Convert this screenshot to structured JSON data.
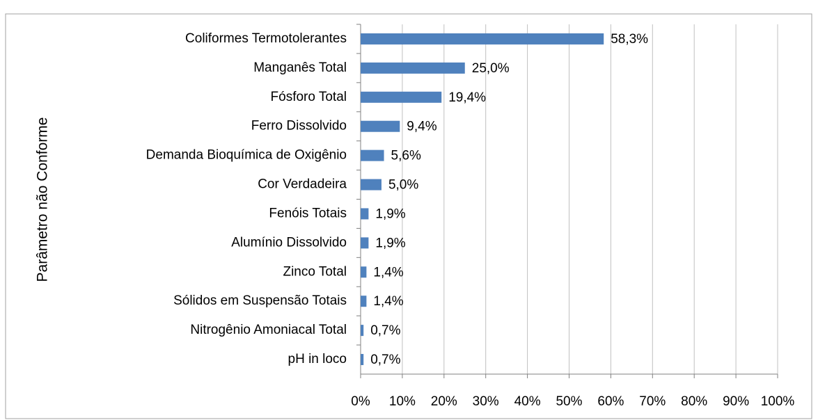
{
  "chart_data": {
    "type": "bar",
    "orientation": "horizontal",
    "y_label": "Parâmetro não Conforme",
    "categories": [
      "Coliformes Termotolerantes",
      "Manganês Total",
      "Fósforo Total",
      "Ferro Dissolvido",
      "Demanda Bioquímica de Oxigênio",
      "Cor Verdadeira",
      "Fenóis Totais",
      "Alumínio Dissolvido",
      "Zinco Total",
      "Sólidos em Suspensão Totais",
      "Nitrogênio Amoniacal Total",
      "pH in loco"
    ],
    "values": [
      58.3,
      25.0,
      19.4,
      9.4,
      5.6,
      5.0,
      1.9,
      1.9,
      1.4,
      1.4,
      0.7,
      0.7
    ],
    "value_labels": [
      "58,3%",
      "25,0%",
      "19,4%",
      "9,4%",
      "5,6%",
      "5,0%",
      "1,9%",
      "1,9%",
      "1,4%",
      "1,4%",
      "0,7%",
      "0,7%"
    ],
    "color": "#4f81bd",
    "xlim": [
      0,
      100
    ],
    "xticks": [
      {
        "value": 0,
        "label": "0%"
      },
      {
        "value": 10,
        "label": "10%"
      },
      {
        "value": 20,
        "label": "20%"
      },
      {
        "value": 30,
        "label": "30%"
      },
      {
        "value": 40,
        "label": "40%"
      },
      {
        "value": 50,
        "label": "50%"
      },
      {
        "value": 60,
        "label": "60%"
      },
      {
        "value": 70,
        "label": "70%"
      },
      {
        "value": 80,
        "label": "80%"
      },
      {
        "value": 90,
        "label": "90%"
      },
      {
        "value": 100,
        "label": "100%"
      }
    ],
    "grid": true
  }
}
